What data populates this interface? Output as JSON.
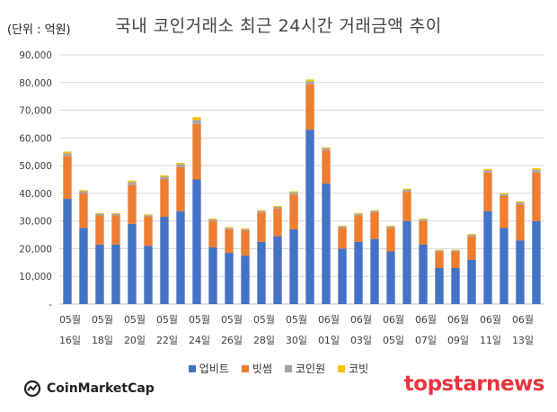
{
  "header": {
    "unit_label": "(단위 : 억원)",
    "title": "국내 코인거래소 최근 24시간 거래금액 추이"
  },
  "legend": [
    {
      "name": "업비트",
      "color": "#4472c4"
    },
    {
      "name": "빗썸",
      "color": "#ed7d31"
    },
    {
      "name": "코인원",
      "color": "#a5a5a5"
    },
    {
      "name": "코빗",
      "color": "#ffc000"
    }
  ],
  "branding": {
    "left": "CoinMarketCap",
    "right": "topstarnews"
  },
  "chart_data": {
    "type": "bar",
    "stacked": true,
    "ylim": [
      0,
      90000
    ],
    "yticks": [
      "-",
      "10,000",
      "20,000",
      "30,000",
      "40,000",
      "50,000",
      "60,000",
      "70,000",
      "80,000",
      "90,000"
    ],
    "grid": true,
    "legend_position": "bottom",
    "x_labels": [
      {
        "month": "05월",
        "day": "16일"
      },
      {
        "month": "05월",
        "day": "18일"
      },
      {
        "month": "05월",
        "day": "20일"
      },
      {
        "month": "05월",
        "day": "22일"
      },
      {
        "month": "05월",
        "day": "24일"
      },
      {
        "month": "05월",
        "day": "26일"
      },
      {
        "month": "05월",
        "day": "28일"
      },
      {
        "month": "05월",
        "day": "30일"
      },
      {
        "month": "06월",
        "day": "01일"
      },
      {
        "month": "06월",
        "day": "03일"
      },
      {
        "month": "06월",
        "day": "05일"
      },
      {
        "month": "06월",
        "day": "07일"
      },
      {
        "month": "06월",
        "day": "09일"
      },
      {
        "month": "06월",
        "day": "11일"
      },
      {
        "month": "06월",
        "day": "13일"
      }
    ],
    "series": [
      {
        "name": "업비트",
        "color": "#4472c4",
        "values": [
          38000,
          27500,
          21500,
          21500,
          29000,
          21000,
          31500,
          33500,
          45000,
          20500,
          18500,
          17500,
          22500,
          24500,
          27000,
          63000,
          43500,
          20000,
          22500,
          23500,
          19000,
          30000,
          21500,
          13000,
          13000,
          16000,
          33500,
          27500,
          23000,
          30000
        ]
      },
      {
        "name": "빗썸",
        "color": "#ed7d31",
        "values": [
          15500,
          12500,
          10500,
          10500,
          14000,
          10500,
          13500,
          16000,
          20000,
          9500,
          8500,
          9000,
          10500,
          10000,
          12500,
          16500,
          12000,
          7500,
          9500,
          9500,
          8500,
          10500,
          8500,
          6000,
          6000,
          8500,
          14000,
          11500,
          13000,
          17500
        ]
      },
      {
        "name": "코인원",
        "color": "#a5a5a5",
        "values": [
          1000,
          800,
          600,
          600,
          1000,
          600,
          1000,
          1000,
          1500,
          600,
          500,
          500,
          600,
          600,
          800,
          1000,
          700,
          500,
          600,
          600,
          500,
          800,
          600,
          400,
          400,
          500,
          800,
          700,
          700,
          1000
        ]
      },
      {
        "name": "코빗",
        "color": "#ffc000",
        "values": [
          600,
          400,
          300,
          300,
          600,
          300,
          500,
          500,
          1000,
          300,
          300,
          300,
          300,
          300,
          400,
          600,
          400,
          300,
          300,
          300,
          300,
          400,
          300,
          200,
          200,
          300,
          500,
          400,
          400,
          600
        ]
      }
    ]
  }
}
